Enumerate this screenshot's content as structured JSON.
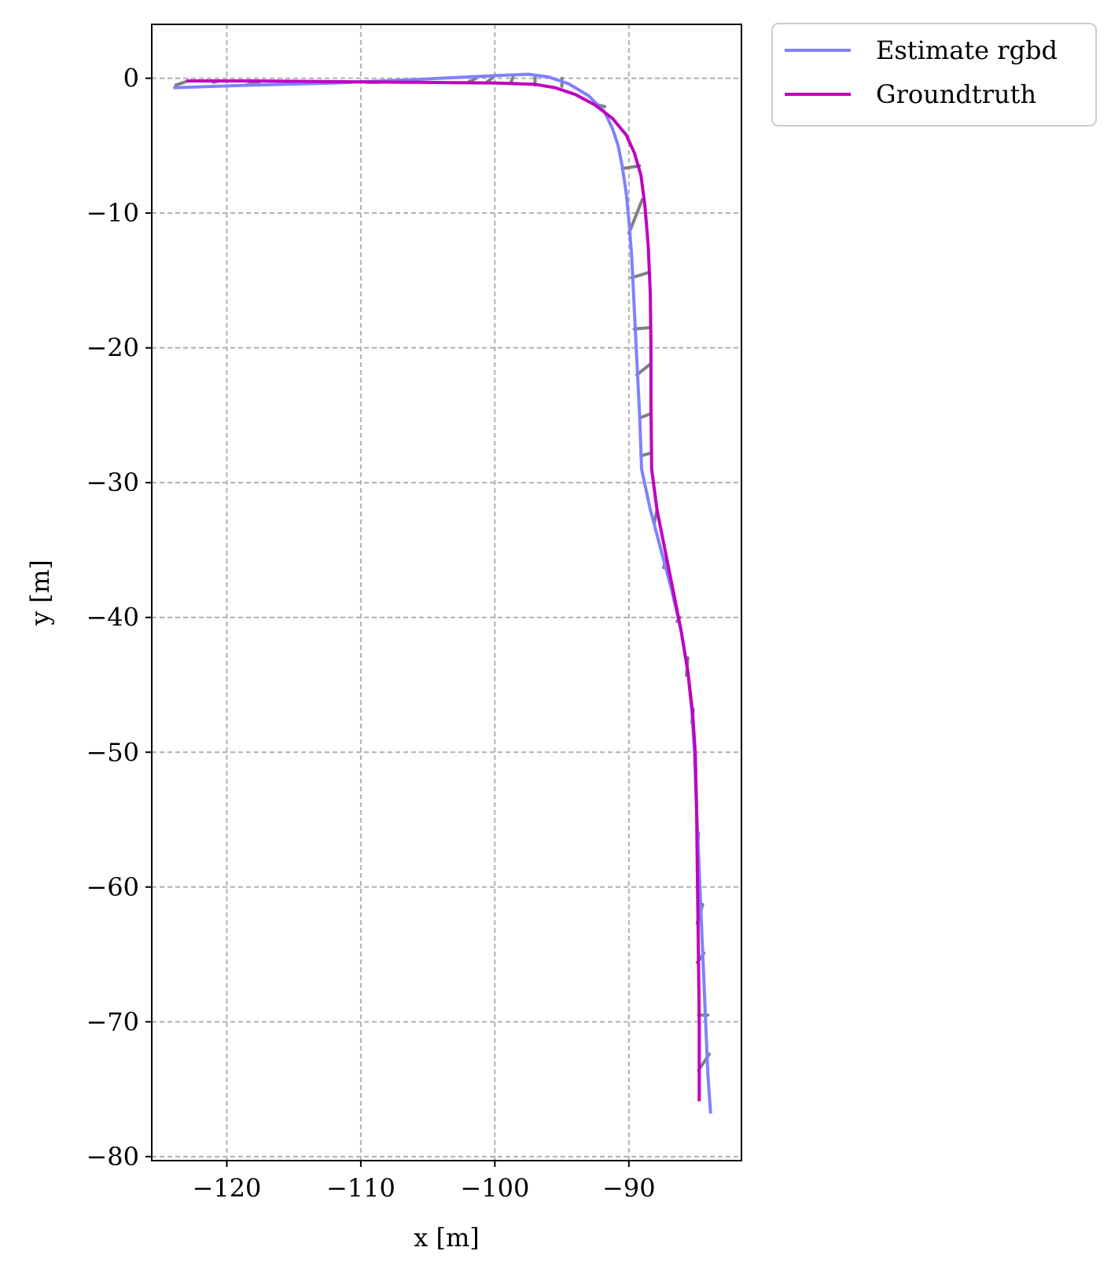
{
  "chart_data": {
    "type": "line",
    "title": "",
    "xlabel": "x [m]",
    "ylabel": "y [m]",
    "xlim": [
      -125.6,
      -81.6
    ],
    "ylim": [
      -80.3,
      4.0
    ],
    "grid": true,
    "legend_position": "outside-top-right",
    "xticks": [
      {
        "value": -120,
        "label": "−120"
      },
      {
        "value": -110,
        "label": "−110"
      },
      {
        "value": -100,
        "label": "−100"
      },
      {
        "value": -90,
        "label": "−90"
      }
    ],
    "yticks": [
      {
        "value": 0,
        "label": "0"
      },
      {
        "value": -10,
        "label": "−10"
      },
      {
        "value": -20,
        "label": "−20"
      },
      {
        "value": -30,
        "label": "−30"
      },
      {
        "value": -40,
        "label": "−40"
      },
      {
        "value": -50,
        "label": "−50"
      },
      {
        "value": -60,
        "label": "−60"
      },
      {
        "value": -70,
        "label": "−70"
      },
      {
        "value": -80,
        "label": "−80"
      }
    ],
    "series": [
      {
        "name": "Estimate rgbd",
        "color": "#8080ff",
        "points": [
          [
            -124.0,
            -0.7
          ],
          [
            -118.0,
            -0.5
          ],
          [
            -112.0,
            -0.35
          ],
          [
            -106.0,
            -0.1
          ],
          [
            -100.0,
            0.2
          ],
          [
            -97.5,
            0.3
          ],
          [
            -96.0,
            0.1
          ],
          [
            -94.5,
            -0.4
          ],
          [
            -93.0,
            -1.3
          ],
          [
            -91.8,
            -2.5
          ],
          [
            -91.2,
            -3.8
          ],
          [
            -90.8,
            -5.0
          ],
          [
            -90.5,
            -6.5
          ],
          [
            -90.2,
            -8.5
          ],
          [
            -90.0,
            -10.5
          ],
          [
            -89.8,
            -13.0
          ],
          [
            -89.65,
            -16.0
          ],
          [
            -89.5,
            -19.0
          ],
          [
            -89.35,
            -22.0
          ],
          [
            -89.2,
            -25.0
          ],
          [
            -89.05,
            -29.0
          ],
          [
            -88.4,
            -32.0
          ],
          [
            -87.6,
            -35.0
          ],
          [
            -86.8,
            -38.0
          ],
          [
            -86.1,
            -41.0
          ],
          [
            -85.6,
            -44.0
          ],
          [
            -85.3,
            -47.0
          ],
          [
            -85.1,
            -50.0
          ],
          [
            -85.0,
            -53.0
          ],
          [
            -84.85,
            -56.5
          ],
          [
            -84.7,
            -60.0
          ],
          [
            -84.55,
            -63.5
          ],
          [
            -84.4,
            -67.0
          ],
          [
            -84.25,
            -70.5
          ],
          [
            -84.1,
            -74.0
          ],
          [
            -83.9,
            -76.8
          ]
        ]
      },
      {
        "name": "Groundtruth",
        "color": "#bf00bf",
        "points": [
          [
            -123.0,
            -0.2
          ],
          [
            -118.0,
            -0.2
          ],
          [
            -112.0,
            -0.25
          ],
          [
            -106.0,
            -0.3
          ],
          [
            -100.0,
            -0.35
          ],
          [
            -97.0,
            -0.45
          ],
          [
            -95.5,
            -0.7
          ],
          [
            -94.0,
            -1.2
          ],
          [
            -92.5,
            -2.0
          ],
          [
            -91.2,
            -3.0
          ],
          [
            -90.2,
            -4.2
          ],
          [
            -89.6,
            -5.5
          ],
          [
            -89.1,
            -7.2
          ],
          [
            -88.8,
            -9.5
          ],
          [
            -88.55,
            -12.5
          ],
          [
            -88.4,
            -16.0
          ],
          [
            -88.35,
            -20.0
          ],
          [
            -88.35,
            -24.0
          ],
          [
            -88.3,
            -29.0
          ],
          [
            -87.9,
            -32.0
          ],
          [
            -87.3,
            -35.0
          ],
          [
            -86.7,
            -38.0
          ],
          [
            -86.1,
            -41.0
          ],
          [
            -85.6,
            -44.0
          ],
          [
            -85.25,
            -47.0
          ],
          [
            -85.05,
            -50.0
          ],
          [
            -84.95,
            -54.0
          ],
          [
            -84.9,
            -58.0
          ],
          [
            -84.85,
            -62.0
          ],
          [
            -84.8,
            -66.0
          ],
          [
            -84.75,
            -70.0
          ],
          [
            -84.75,
            -73.5
          ],
          [
            -84.75,
            -75.9
          ]
        ]
      }
    ],
    "correspondence_pairs": [
      [
        [
          -123.8,
          -0.5
        ],
        [
          -122.9,
          -0.2
        ]
      ],
      [
        [
          -121.0,
          -0.3
        ],
        [
          -120.6,
          -0.2
        ]
      ],
      [
        [
          -118.6,
          -0.5
        ],
        [
          -117.6,
          -0.3
        ]
      ],
      [
        [
          -115.6,
          -0.4
        ],
        [
          -114.6,
          -0.3
        ]
      ],
      [
        [
          -112.6,
          -0.3
        ],
        [
          -111.6,
          -0.25
        ]
      ],
      [
        [
          -109.6,
          -0.3
        ],
        [
          -108.6,
          -0.3
        ]
      ],
      [
        [
          -106.6,
          -0.2
        ],
        [
          -105.6,
          -0.25
        ]
      ],
      [
        [
          -102.0,
          -0.3
        ],
        [
          -101.4,
          0.0
        ]
      ],
      [
        [
          -100.6,
          -0.3
        ],
        [
          -100.0,
          0.2
        ]
      ],
      [
        [
          -98.8,
          -0.3
        ],
        [
          -98.6,
          0.2
        ]
      ],
      [
        [
          -97.0,
          -0.5
        ],
        [
          -97.0,
          0.1
        ]
      ],
      [
        [
          -95.0,
          -0.6
        ],
        [
          -95.0,
          0.0
        ]
      ],
      [
        [
          -92.6,
          -1.9
        ],
        [
          -91.8,
          -2.1
        ]
      ],
      [
        [
          -90.5,
          -6.7
        ],
        [
          -89.2,
          -6.5
        ]
      ],
      [
        [
          -90.0,
          -11.5
        ],
        [
          -89.0,
          -9.0
        ]
      ],
      [
        [
          -89.8,
          -14.8
        ],
        [
          -88.5,
          -14.4
        ]
      ],
      [
        [
          -89.6,
          -18.6
        ],
        [
          -88.4,
          -18.5
        ]
      ],
      [
        [
          -89.4,
          -22.0
        ],
        [
          -88.4,
          -21.2
        ]
      ],
      [
        [
          -89.2,
          -25.2
        ],
        [
          -88.4,
          -24.9
        ]
      ],
      [
        [
          -89.1,
          -28.0
        ],
        [
          -88.3,
          -27.8
        ]
      ],
      [
        [
          -88.1,
          -33.0
        ],
        [
          -87.9,
          -32.0
        ]
      ],
      [
        [
          -87.4,
          -36.3
        ],
        [
          -87.2,
          -35.5
        ]
      ],
      [
        [
          -86.4,
          -40.3
        ],
        [
          -86.2,
          -40.0
        ]
      ],
      [
        [
          -85.7,
          -44.3
        ],
        [
          -85.6,
          -43.0
        ]
      ],
      [
        [
          -85.3,
          -47.8
        ],
        [
          -85.2,
          -46.8
        ]
      ],
      [
        [
          -85.1,
          -50.8
        ],
        [
          -85.0,
          -51.3
        ]
      ],
      [
        [
          -84.9,
          -57.2
        ],
        [
          -84.8,
          -56.0
        ]
      ],
      [
        [
          -84.9,
          -62.7
        ],
        [
          -84.5,
          -61.3
        ]
      ],
      [
        [
          -84.9,
          -65.6
        ],
        [
          -84.4,
          -64.9
        ]
      ],
      [
        [
          -84.8,
          -69.5
        ],
        [
          -84.1,
          -69.5
        ]
      ],
      [
        [
          -84.8,
          -73.6
        ],
        [
          -84.0,
          -72.4
        ]
      ]
    ],
    "correspondence_color": "#808080"
  }
}
